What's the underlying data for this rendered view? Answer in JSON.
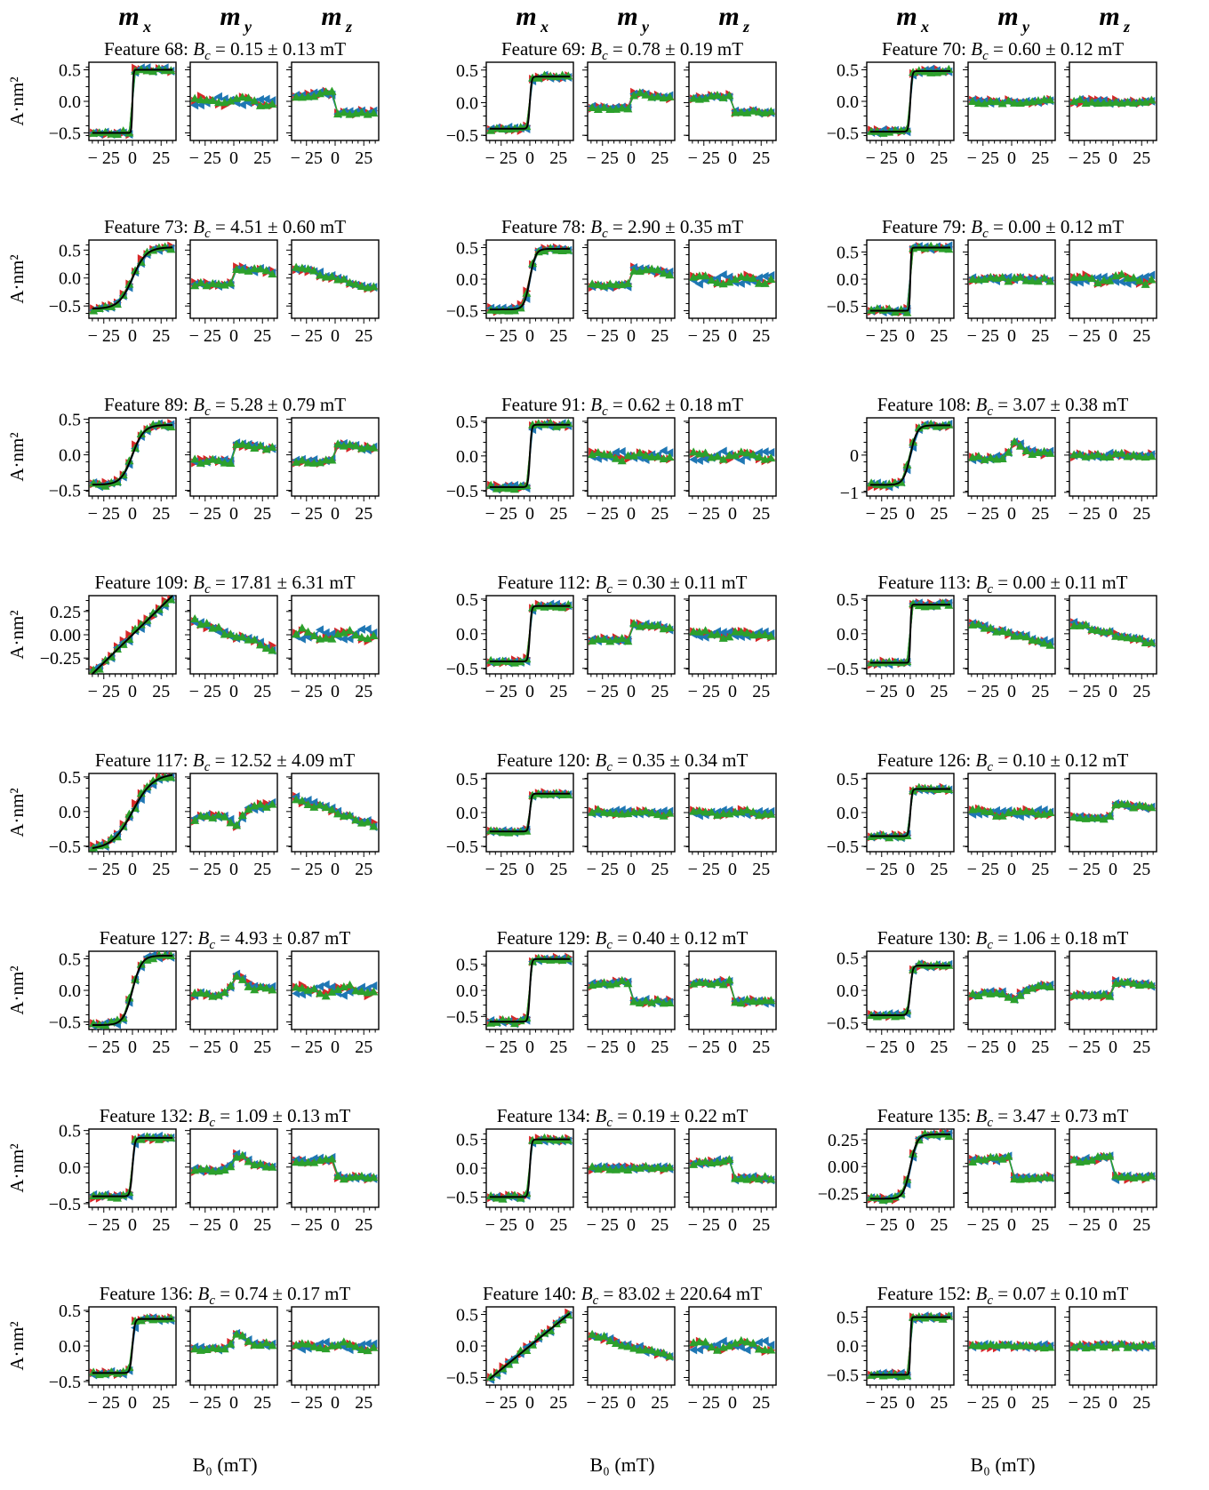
{
  "figure": {
    "column_headers": [
      "m",
      "m",
      "m"
    ],
    "column_header_subscripts": [
      "x",
      "y",
      "z"
    ],
    "y_axis_label": "A·nm²",
    "x_axis_label": "B₀ (mT)",
    "title_template": "Feature {id}: B_c = {bc} ± {err} mT",
    "series_colors": {
      "descending": "#d62728",
      "ascending": "#1f77b4",
      "green": "#2ca02c",
      "fit": "#000000"
    }
  },
  "chart_data": {
    "type": "scatter",
    "x_ticks": [
      -25,
      0,
      25
    ],
    "x_range": [
      -38,
      38
    ],
    "panels_per_feature": [
      "m_x",
      "m_y",
      "m_z"
    ],
    "features": [
      {
        "id": "68",
        "bc": "0.15",
        "err": "0.13",
        "shape": "step",
        "width": 0.8,
        "amp": 0.5,
        "y_ticks": [
          "0.5",
          "0.0",
          "−0.5"
        ],
        "y_tick_values": [
          0.5,
          0,
          -0.5
        ],
        "ylim": [
          -0.62,
          0.62
        ],
        "my_shape": "wiggle",
        "mz_shape": "dropdown"
      },
      {
        "id": "69",
        "bc": "0.78",
        "err": "0.19",
        "shape": "step",
        "width": 1.5,
        "amp": 0.4,
        "y_ticks": [
          "0.5",
          "0.0",
          "−0.5"
        ],
        "y_tick_values": [
          0.5,
          0,
          -0.5
        ],
        "ylim": [
          -0.58,
          0.62
        ],
        "my_shape": "stepup",
        "mz_shape": "dropdown"
      },
      {
        "id": "70",
        "bc": "0.60",
        "err": "0.12",
        "shape": "step",
        "width": 1.5,
        "amp": 0.48,
        "y_ticks": [
          "0.5",
          "0.0",
          "−0.5"
        ],
        "y_tick_values": [
          0.5,
          0,
          -0.5
        ],
        "ylim": [
          -0.62,
          0.62
        ],
        "my_shape": "flat",
        "mz_shape": "flat"
      },
      {
        "id": "73",
        "bc": "4.51",
        "err": "0.60",
        "shape": "smooth",
        "width": 12,
        "amp": 0.55,
        "y_ticks": [
          "0.5",
          "0.0",
          "−0.5"
        ],
        "y_tick_values": [
          0.5,
          0,
          -0.5
        ],
        "ylim": [
          -0.72,
          0.68
        ],
        "my_shape": "stepup",
        "mz_shape": "slope"
      },
      {
        "id": "78",
        "bc": "2.90",
        "err": "0.35",
        "shape": "smooth",
        "width": 5,
        "amp": 0.48,
        "y_ticks": [
          "0.5",
          "0.0",
          "−0.5"
        ],
        "y_tick_values": [
          0.5,
          0,
          -0.5
        ],
        "ylim": [
          -0.62,
          0.62
        ],
        "my_shape": "stepup",
        "mz_shape": "wiggle"
      },
      {
        "id": "79",
        "bc": "0.00",
        "err": "0.12",
        "shape": "step",
        "width": 0.8,
        "amp": 0.58,
        "y_ticks": [
          "0.5",
          "0.0",
          "−0.5"
        ],
        "y_tick_values": [
          0.5,
          0,
          -0.5
        ],
        "ylim": [
          -0.72,
          0.72
        ],
        "my_shape": "flat",
        "mz_shape": "wiggle"
      },
      {
        "id": "89",
        "bc": "5.28",
        "err": "0.79",
        "shape": "smooth",
        "width": 10,
        "amp": 0.42,
        "y_ticks": [
          "0.5",
          "0.0",
          "−0.5"
        ],
        "y_tick_values": [
          0.5,
          0,
          -0.5
        ],
        "ylim": [
          -0.58,
          0.52
        ],
        "my_shape": "stepup",
        "mz_shape": "stepup"
      },
      {
        "id": "91",
        "bc": "0.62",
        "err": "0.18",
        "shape": "step",
        "width": 1.5,
        "amp": 0.45,
        "y_ticks": [
          "0.5",
          "0.0",
          "−0.5"
        ],
        "y_tick_values": [
          0.5,
          0,
          -0.5
        ],
        "ylim": [
          -0.58,
          0.55
        ],
        "my_shape": "wiggle",
        "mz_shape": "wiggle"
      },
      {
        "id": "108",
        "bc": "3.07",
        "err": "0.38",
        "shape": "smooth",
        "width": 6,
        "amp": 0.8,
        "y_ticks": [
          "0",
          "−1"
        ],
        "y_tick_values": [
          0,
          -1
        ],
        "ylim": [
          -1.1,
          1.0
        ],
        "my_shape": "peak",
        "mz_shape": "flat"
      },
      {
        "id": "109",
        "bc": "17.81",
        "err": "6.31",
        "shape": "linear",
        "width": 40,
        "amp": 0.42,
        "y_ticks": [
          "0.25",
          "0.00",
          "−0.25"
        ],
        "y_tick_values": [
          0.25,
          0,
          -0.25
        ],
        "ylim": [
          -0.42,
          0.42
        ],
        "my_shape": "slope",
        "mz_shape": "wiggle"
      },
      {
        "id": "112",
        "bc": "0.30",
        "err": "0.11",
        "shape": "step",
        "width": 1.5,
        "amp": 0.4,
        "y_ticks": [
          "0.5",
          "0.0",
          "−0.5"
        ],
        "y_tick_values": [
          0.5,
          0,
          -0.5
        ],
        "ylim": [
          -0.58,
          0.55
        ],
        "my_shape": "stepup",
        "mz_shape": "wiggle"
      },
      {
        "id": "113",
        "bc": "0.00",
        "err": "0.11",
        "shape": "step",
        "width": 0.8,
        "amp": 0.42,
        "y_ticks": [
          "0.5",
          "0.0",
          "−0.5"
        ],
        "y_tick_values": [
          0.5,
          0,
          -0.5
        ],
        "ylim": [
          -0.58,
          0.55
        ],
        "my_shape": "slope",
        "mz_shape": "slope"
      },
      {
        "id": "117",
        "bc": "12.52",
        "err": "4.09",
        "shape": "smooth",
        "width": 18,
        "amp": 0.55,
        "y_ticks": [
          "0.5",
          "0.0",
          "−0.5"
        ],
        "y_tick_values": [
          0.5,
          0,
          -0.5
        ],
        "ylim": [
          -0.58,
          0.55
        ],
        "my_shape": "dip",
        "mz_shape": "slope"
      },
      {
        "id": "120",
        "bc": "0.35",
        "err": "0.34",
        "shape": "step",
        "width": 1.5,
        "amp": 0.28,
        "y_ticks": [
          "0.5",
          "0.0",
          "−0.5"
        ],
        "y_tick_values": [
          0.5,
          0,
          -0.5
        ],
        "ylim": [
          -0.58,
          0.58
        ],
        "my_shape": "wiggle",
        "mz_shape": "wiggle"
      },
      {
        "id": "126",
        "bc": "0.10",
        "err": "0.12",
        "shape": "step",
        "width": 1.5,
        "amp": 0.35,
        "y_ticks": [
          "0.5",
          "0.0",
          "−0.5"
        ],
        "y_tick_values": [
          0.5,
          0,
          -0.5
        ],
        "ylim": [
          -0.58,
          0.58
        ],
        "my_shape": "wiggle",
        "mz_shape": "stepup"
      },
      {
        "id": "127",
        "bc": "4.93",
        "err": "0.87",
        "shape": "smooth",
        "width": 8,
        "amp": 0.55,
        "y_ticks": [
          "0.5",
          "0.0",
          "−0.5"
        ],
        "y_tick_values": [
          0.5,
          0,
          -0.5
        ],
        "ylim": [
          -0.62,
          0.62
        ],
        "my_shape": "peak",
        "mz_shape": "wiggle"
      },
      {
        "id": "129",
        "bc": "0.40",
        "err": "0.12",
        "shape": "step",
        "width": 1.5,
        "amp": 0.6,
        "y_ticks": [
          "0.5",
          "0.0",
          "−0.5"
        ],
        "y_tick_values": [
          0.5,
          0,
          -0.5
        ],
        "ylim": [
          -0.75,
          0.75
        ],
        "my_shape": "dropdown",
        "mz_shape": "dropdown"
      },
      {
        "id": "130",
        "bc": "1.06",
        "err": "0.18",
        "shape": "step",
        "width": 2,
        "amp": 0.38,
        "y_ticks": [
          "0.5",
          "0.0",
          "−0.5"
        ],
        "y_tick_values": [
          0.5,
          0,
          -0.5
        ],
        "ylim": [
          -0.6,
          0.6
        ],
        "my_shape": "dip",
        "mz_shape": "stepup"
      },
      {
        "id": "132",
        "bc": "1.09",
        "err": "0.13",
        "shape": "step",
        "width": 2,
        "amp": 0.4,
        "y_ticks": [
          "0.5",
          "0.0",
          "−0.5"
        ],
        "y_tick_values": [
          0.5,
          0,
          -0.5
        ],
        "ylim": [
          -0.55,
          0.52
        ],
        "my_shape": "peak",
        "mz_shape": "dropdown"
      },
      {
        "id": "134",
        "bc": "0.19",
        "err": "0.22",
        "shape": "step",
        "width": 1.5,
        "amp": 0.5,
        "y_ticks": [
          "0.5",
          "0.0",
          "−0.5"
        ],
        "y_tick_values": [
          0.5,
          0,
          -0.5
        ],
        "ylim": [
          -0.68,
          0.68
        ],
        "my_shape": "flat",
        "mz_shape": "dropdown"
      },
      {
        "id": "135",
        "bc": "3.47",
        "err": "0.73",
        "shape": "smooth",
        "width": 6,
        "amp": 0.3,
        "y_ticks": [
          "0.25",
          "0.00",
          "−0.25"
        ],
        "y_tick_values": [
          0.25,
          0,
          -0.25
        ],
        "ylim": [
          -0.38,
          0.35
        ],
        "my_shape": "dropdown",
        "mz_shape": "dropdown"
      },
      {
        "id": "136",
        "bc": "0.74",
        "err": "0.17",
        "shape": "step",
        "width": 2,
        "amp": 0.38,
        "y_ticks": [
          "0.5",
          "0.0",
          "−0.5"
        ],
        "y_tick_values": [
          0.5,
          0,
          -0.5
        ],
        "ylim": [
          -0.55,
          0.55
        ],
        "my_shape": "peak",
        "mz_shape": "wiggle"
      },
      {
        "id": "140",
        "bc": "83.02",
        "err": "220.64",
        "shape": "linear",
        "width": 30,
        "amp": 0.52,
        "y_ticks": [
          "0.5",
          "0.0",
          "−0.5"
        ],
        "y_tick_values": [
          0.5,
          0,
          -0.5
        ],
        "ylim": [
          -0.62,
          0.62
        ],
        "my_shape": "slope",
        "mz_shape": "wiggle"
      },
      {
        "id": "152",
        "bc": "0.07",
        "err": "0.10",
        "shape": "step",
        "width": 0.8,
        "amp": 0.5,
        "y_ticks": [
          "0.5",
          "0.0",
          "−0.5"
        ],
        "y_tick_values": [
          0.5,
          0,
          -0.5
        ],
        "ylim": [
          -0.68,
          0.68
        ],
        "my_shape": "flat",
        "mz_shape": "flat"
      }
    ]
  }
}
